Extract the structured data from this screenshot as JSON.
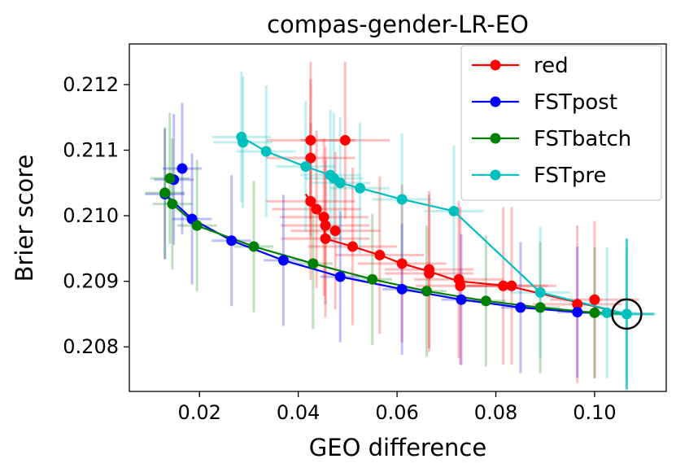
{
  "chart_data": {
    "type": "scatter",
    "title": "compas-gender-LR-EO",
    "xlabel": "GEO difference",
    "ylabel": "Brier score",
    "xlim": [
      0.0058,
      0.1145
    ],
    "ylim": [
      0.20732,
      0.21262
    ],
    "xticks": [
      {
        "value": 0.02,
        "label": "0.02"
      },
      {
        "value": 0.04,
        "label": "0.04"
      },
      {
        "value": 0.06,
        "label": "0.06"
      },
      {
        "value": 0.08,
        "label": "0.08"
      },
      {
        "value": 0.1,
        "label": "0.10"
      }
    ],
    "yticks": [
      {
        "value": 0.208,
        "label": "0.208"
      },
      {
        "value": 0.209,
        "label": "0.209"
      },
      {
        "value": 0.21,
        "label": "0.210"
      },
      {
        "value": 0.211,
        "label": "0.211"
      },
      {
        "value": 0.212,
        "label": "0.212"
      }
    ],
    "legend_position": "top-right",
    "reference_point": {
      "x": 0.1065,
      "y": 0.2085
    },
    "series": [
      {
        "name": "red",
        "color": "#ff0000",
        "line": [
          [
            0.0415,
            0.21033
          ],
          [
            0.0425,
            0.21022
          ],
          [
            0.0437,
            0.2101
          ],
          [
            0.0445,
            0.20998
          ],
          [
            0.0452,
            0.20985
          ],
          [
            0.0455,
            0.20965
          ],
          [
            0.051,
            0.20953
          ],
          [
            0.0565,
            0.2094
          ],
          [
            0.061,
            0.20927
          ],
          [
            0.0665,
            0.20915
          ],
          [
            0.0725,
            0.209
          ],
          [
            0.0825,
            0.20893
          ],
          [
            0.1065,
            0.2085
          ]
        ],
        "scatter": [
          [
            0.0425,
            0.21115
          ],
          [
            0.0425,
            0.21088
          ],
          [
            0.0495,
            0.21115
          ],
          [
            0.0425,
            0.21022
          ],
          [
            0.0437,
            0.2101
          ],
          [
            0.0452,
            0.20998
          ],
          [
            0.0455,
            0.20985
          ],
          [
            0.0475,
            0.20977
          ],
          [
            0.0455,
            0.20965
          ],
          [
            0.051,
            0.20953
          ],
          [
            0.0565,
            0.2094
          ],
          [
            0.061,
            0.20927
          ],
          [
            0.0665,
            0.20918
          ],
          [
            0.0665,
            0.20912
          ],
          [
            0.0725,
            0.20903
          ],
          [
            0.0728,
            0.20893
          ],
          [
            0.0815,
            0.20893
          ],
          [
            0.0832,
            0.20893
          ],
          [
            0.0965,
            0.20865
          ],
          [
            0.1,
            0.20872
          ]
        ],
        "err_x": 0.009,
        "err_y": 0.0012
      },
      {
        "name": "FSTpost",
        "color": "#0000ff",
        "line": [
          [
            0.013,
            0.21033
          ],
          [
            0.0185,
            0.20995
          ],
          [
            0.0265,
            0.20962
          ],
          [
            0.037,
            0.20932
          ],
          [
            0.0485,
            0.20907
          ],
          [
            0.061,
            0.20888
          ],
          [
            0.073,
            0.20872
          ],
          [
            0.085,
            0.2086
          ],
          [
            0.0965,
            0.20853
          ],
          [
            0.1065,
            0.2085
          ]
        ],
        "scatter": [
          [
            0.013,
            0.21033
          ],
          [
            0.0148,
            0.21055
          ],
          [
            0.0165,
            0.21072
          ],
          [
            0.0185,
            0.20995
          ],
          [
            0.0265,
            0.20962
          ],
          [
            0.037,
            0.20932
          ],
          [
            0.0485,
            0.20907
          ],
          [
            0.061,
            0.20888
          ],
          [
            0.073,
            0.20872
          ],
          [
            0.085,
            0.2086
          ],
          [
            0.0965,
            0.20853
          ]
        ],
        "err_x": 0.004,
        "err_y": 0.001
      },
      {
        "name": "FSTbatch",
        "color": "#008000",
        "line": [
          [
            0.013,
            0.21035
          ],
          [
            0.0145,
            0.21018
          ],
          [
            0.0195,
            0.20985
          ],
          [
            0.031,
            0.20953
          ],
          [
            0.043,
            0.20927
          ],
          [
            0.055,
            0.20903
          ],
          [
            0.066,
            0.20885
          ],
          [
            0.078,
            0.2087
          ],
          [
            0.089,
            0.2086
          ],
          [
            0.1,
            0.20852
          ],
          [
            0.1065,
            0.2085
          ]
        ],
        "scatter": [
          [
            0.013,
            0.21035
          ],
          [
            0.014,
            0.21057
          ],
          [
            0.0145,
            0.21018
          ],
          [
            0.0195,
            0.20985
          ],
          [
            0.031,
            0.20953
          ],
          [
            0.043,
            0.20927
          ],
          [
            0.055,
            0.20903
          ],
          [
            0.066,
            0.20885
          ],
          [
            0.078,
            0.2087
          ],
          [
            0.089,
            0.2086
          ],
          [
            0.1,
            0.20852
          ]
        ],
        "err_x": 0.004,
        "err_y": 0.001
      },
      {
        "name": "FSTpre",
        "color": "#00bfbf",
        "line": [
          [
            0.0285,
            0.2112
          ],
          [
            0.0335,
            0.21098
          ],
          [
            0.0415,
            0.21075
          ],
          [
            0.0465,
            0.21062
          ],
          [
            0.0485,
            0.2105
          ],
          [
            0.0525,
            0.21042
          ],
          [
            0.061,
            0.21025
          ],
          [
            0.0715,
            0.21007
          ],
          [
            0.089,
            0.20883
          ],
          [
            0.1065,
            0.2085
          ]
        ],
        "scatter": [
          [
            0.0285,
            0.2112
          ],
          [
            0.0288,
            0.21112
          ],
          [
            0.0335,
            0.21098
          ],
          [
            0.0415,
            0.21075
          ],
          [
            0.0465,
            0.21062
          ],
          [
            0.0472,
            0.21057
          ],
          [
            0.0485,
            0.2105
          ],
          [
            0.0525,
            0.21042
          ],
          [
            0.061,
            0.21025
          ],
          [
            0.0715,
            0.21007
          ],
          [
            0.089,
            0.20883
          ],
          [
            0.1025,
            0.20852
          ],
          [
            0.1065,
            0.2085
          ]
        ],
        "err_x": 0.006,
        "err_y": 0.001
      }
    ]
  }
}
